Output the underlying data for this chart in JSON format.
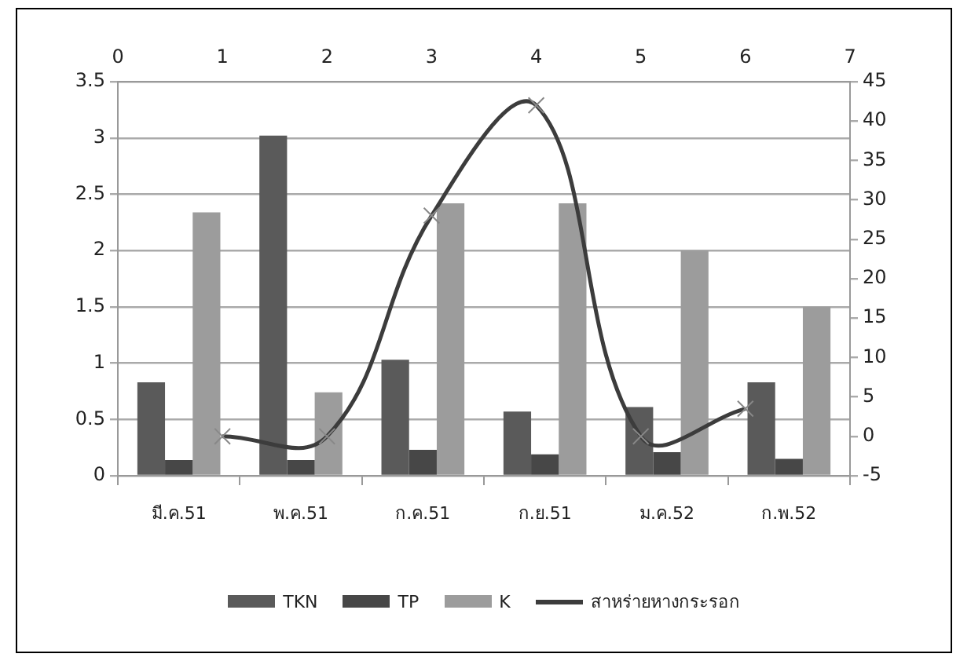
{
  "chart_data": [
    {
      "type": "bar",
      "categories": [
        "มี.ค.51",
        "พ.ค.51",
        "ก.ค.51",
        "ก.ย.51",
        "ม.ค.52",
        "ก.พ.52"
      ],
      "series": [
        {
          "name": "TKN",
          "color": "#5a5a5a",
          "values": [
            0.83,
            3.02,
            1.03,
            0.57,
            0.61,
            0.83
          ]
        },
        {
          "name": "TP",
          "color": "#474747",
          "values": [
            0.14,
            0.14,
            0.23,
            0.19,
            0.21,
            0.15
          ]
        },
        {
          "name": "K",
          "color": "#9c9c9c",
          "values": [
            2.34,
            0.74,
            2.42,
            2.42,
            2.0,
            1.5
          ]
        }
      ],
      "ylim": [
        0,
        3.5
      ],
      "yticks": [
        0,
        0.5,
        1,
        1.5,
        2,
        2.5,
        3,
        3.5
      ],
      "grid": "y",
      "legend": "bottom"
    },
    {
      "type": "line",
      "x": [
        1,
        2,
        3,
        4,
        5,
        6
      ],
      "series": [
        {
          "name": "สาหร่ายหางกระรอก",
          "color": "#3c3c3c",
          "values": [
            0,
            0,
            28,
            42,
            0,
            3.5
          ]
        }
      ],
      "xlim": [
        0,
        7
      ],
      "xticks": [
        0,
        1,
        2,
        3,
        4,
        5,
        6,
        7
      ],
      "ylim": [
        -5,
        45
      ],
      "yticks": [
        -5,
        0,
        5,
        10,
        15,
        20,
        25,
        30,
        35,
        40,
        45
      ],
      "marker": "cross",
      "legend": "bottom"
    }
  ]
}
